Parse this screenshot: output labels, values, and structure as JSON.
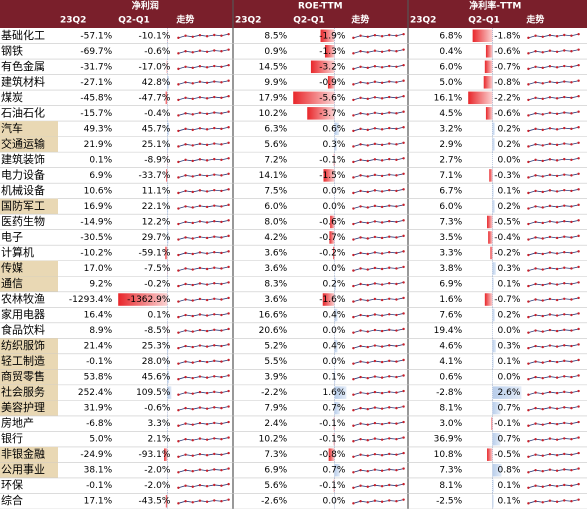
{
  "header": {
    "groups": [
      "净利润",
      "ROE-TTM",
      "净利率-TTM"
    ],
    "columns": [
      "23Q2",
      "Q2-Q1",
      "走势"
    ]
  },
  "table": {
    "highlight": [
      false,
      false,
      false,
      false,
      false,
      false,
      true,
      true,
      false,
      false,
      false,
      true,
      false,
      false,
      false,
      true,
      true,
      false,
      false,
      false,
      true,
      true,
      true,
      true,
      true,
      false,
      false,
      true,
      true,
      false,
      false
    ],
    "rows": [
      [
        "基础化工",
        "-57.1%",
        "-10.1%",
        "8.5%",
        "-1.9%",
        "6.8%",
        "-1.8%"
      ],
      [
        "钢铁",
        "-69.7%",
        "-0.6%",
        "0.9%",
        "-1.3%",
        "0.4%",
        "-0.6%"
      ],
      [
        "有色金属",
        "-31.7%",
        "-17.0%",
        "14.5%",
        "-3.2%",
        "6.0%",
        "-0.7%"
      ],
      [
        "建筑材料",
        "-27.1%",
        "42.8%",
        "9.9%",
        "-0.9%",
        "5.0%",
        "-0.8%"
      ],
      [
        "煤炭",
        "-45.8%",
        "-47.7%",
        "17.9%",
        "-5.6%",
        "16.1%",
        "-2.2%"
      ],
      [
        "石油石化",
        "-15.7%",
        "-0.4%",
        "10.2%",
        "-3.7%",
        "4.5%",
        "-0.6%"
      ],
      [
        "汽车",
        "49.3%",
        "45.7%",
        "6.3%",
        "0.6%",
        "3.2%",
        "0.2%"
      ],
      [
        "交通运输",
        "21.9%",
        "25.1%",
        "5.6%",
        "0.3%",
        "2.9%",
        "0.2%"
      ],
      [
        "建筑装饰",
        "0.1%",
        "-8.9%",
        "7.2%",
        "-0.1%",
        "2.7%",
        "0.0%"
      ],
      [
        "电力设备",
        "6.9%",
        "-33.7%",
        "14.1%",
        "-1.5%",
        "7.1%",
        "-0.3%"
      ],
      [
        "机械设备",
        "10.6%",
        "11.1%",
        "7.5%",
        "0.0%",
        "6.7%",
        "0.1%"
      ],
      [
        "国防军工",
        "16.9%",
        "22.1%",
        "6.0%",
        "0.0%",
        "6.0%",
        "0.2%"
      ],
      [
        "医药生物",
        "-14.9%",
        "12.2%",
        "8.0%",
        "-0.6%",
        "7.3%",
        "-0.5%"
      ],
      [
        "电子",
        "-30.5%",
        "29.7%",
        "4.2%",
        "-0.7%",
        "3.5%",
        "-0.4%"
      ],
      [
        "计算机",
        "-10.2%",
        "-59.1%",
        "3.6%",
        "-0.2%",
        "3.3%",
        "-0.2%"
      ],
      [
        "传媒",
        "17.0%",
        "-7.5%",
        "3.6%",
        "0.0%",
        "3.8%",
        "0.3%"
      ],
      [
        "通信",
        "9.2%",
        "-0.2%",
        "8.3%",
        "0.2%",
        "6.9%",
        "0.1%"
      ],
      [
        "农林牧渔",
        "-1293.4%",
        "-1362.9%",
        "3.6%",
        "-1.6%",
        "1.6%",
        "-0.7%"
      ],
      [
        "家用电器",
        "16.4%",
        "0.1%",
        "16.6%",
        "0.4%",
        "7.6%",
        "0.2%"
      ],
      [
        "食品饮料",
        "8.9%",
        "-8.5%",
        "20.6%",
        "0.0%",
        "19.4%",
        "0.0%"
      ],
      [
        "纺织服饰",
        "21.4%",
        "25.3%",
        "5.2%",
        "0.4%",
        "4.6%",
        "0.3%"
      ],
      [
        "轻工制造",
        "-0.1%",
        "28.0%",
        "5.5%",
        "0.0%",
        "4.1%",
        "0.1%"
      ],
      [
        "商贸零售",
        "53.8%",
        "45.6%",
        "3.9%",
        "0.1%",
        "0.6%",
        "0.0%"
      ],
      [
        "社会服务",
        "252.4%",
        "109.5%",
        "-2.2%",
        "1.6%",
        "-2.8%",
        "2.6%"
      ],
      [
        "美容护理",
        "31.9%",
        "-0.6%",
        "7.9%",
        "0.7%",
        "8.1%",
        "0.7%"
      ],
      [
        "房地产",
        "-6.8%",
        "3.3%",
        "2.4%",
        "-0.1%",
        "3.0%",
        "-0.1%"
      ],
      [
        "银行",
        "5.0%",
        "2.1%",
        "10.2%",
        "-0.1%",
        "36.9%",
        "0.7%"
      ],
      [
        "非银金融",
        "-24.9%",
        "-93.1%",
        "7.3%",
        "-0.8%",
        "10.8%",
        "-0.5%"
      ],
      [
        "公用事业",
        "38.1%",
        "-2.0%",
        "6.9%",
        "0.7%",
        "7.3%",
        "0.8%"
      ],
      [
        "环保",
        "-0.1%",
        "-2.0%",
        "5.6%",
        "-0.1%",
        "8.1%",
        "0.1%"
      ],
      [
        "综合",
        "17.1%",
        "-43.5%",
        "-2.6%",
        "0.0%",
        "-2.5%",
        "0.1%"
      ]
    ]
  }
}
